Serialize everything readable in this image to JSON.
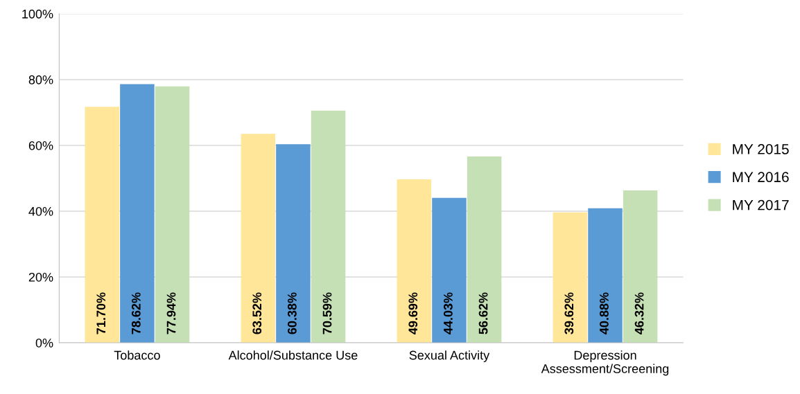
{
  "chart_data": {
    "type": "bar",
    "categories": [
      "Tobacco",
      "Alcohol/Substance Use",
      "Sexual Activity",
      "Depression\nAssessment/Screening"
    ],
    "series": [
      {
        "name": "MY 2015",
        "color": "#ffe699",
        "values": [
          71.7,
          63.52,
          49.69,
          39.62
        ],
        "value_labels": [
          "71.70%",
          "63.52%",
          "49.69%",
          "39.62%"
        ]
      },
      {
        "name": "MY 2016",
        "color": "#5b9bd5",
        "values": [
          78.62,
          60.38,
          44.03,
          40.88
        ],
        "value_labels": [
          "78.62%",
          "60.38%",
          "44.03%",
          "40.88%"
        ]
      },
      {
        "name": "MY 2017",
        "color": "#c5e0b4",
        "values": [
          77.94,
          70.59,
          56.62,
          46.32
        ],
        "value_labels": [
          "77.94%",
          "70.59%",
          "56.62%",
          "46.32%"
        ]
      }
    ],
    "ylim": [
      0,
      100
    ],
    "yticks": [
      {
        "value": 0,
        "label": "0%"
      },
      {
        "value": 20,
        "label": "20%"
      },
      {
        "value": 40,
        "label": "40%"
      },
      {
        "value": 60,
        "label": "60%"
      },
      {
        "value": 80,
        "label": "80%"
      },
      {
        "value": 100,
        "label": "100%"
      }
    ],
    "grid": "y",
    "legend": "right"
  }
}
